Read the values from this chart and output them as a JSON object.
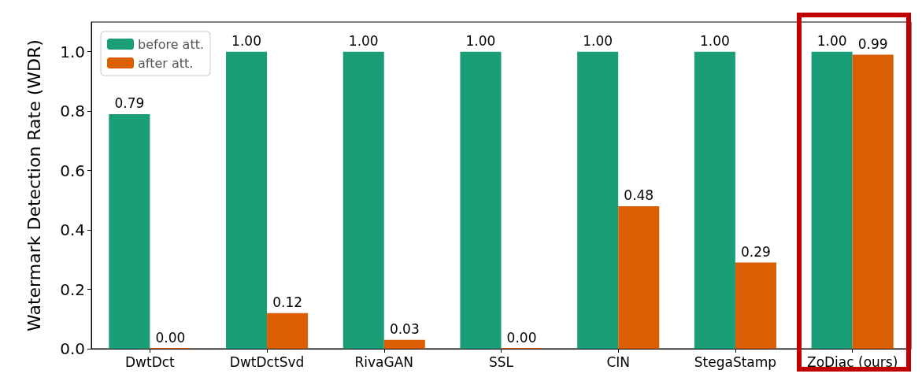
{
  "chart_data": {
    "type": "bar",
    "ylabel": "Watermark Detection Rate (WDR)",
    "categories": [
      "DwtDct",
      "DwtDctSvd",
      "RivaGAN",
      "SSL",
      "CIN",
      "StegaStamp",
      "ZoDiac (ours)"
    ],
    "series": [
      {
        "name": "before att.",
        "color": "#1b9e77",
        "values": [
          0.79,
          1.0,
          1.0,
          1.0,
          1.0,
          1.0,
          1.0
        ],
        "value_labels": [
          "0.79",
          "1.00",
          "1.00",
          "1.00",
          "1.00",
          "1.00",
          "1.00"
        ]
      },
      {
        "name": "after att.",
        "color": "#d95f02",
        "values": [
          0.0,
          0.12,
          0.03,
          0.0,
          0.48,
          0.29,
          0.99
        ],
        "value_labels": [
          "0.00",
          "0.12",
          "0.03",
          "0.00",
          "0.48",
          "0.29",
          "0.99"
        ]
      }
    ],
    "ylim": [
      0,
      1.1
    ],
    "yticks": [
      {
        "value": 0,
        "label": "0.0"
      },
      {
        "value": 0.2,
        "label": "0.2"
      },
      {
        "value": 0.4,
        "label": "0.4"
      },
      {
        "value": 0.6,
        "label": "0.6"
      },
      {
        "value": 0.8,
        "label": "0.8"
      },
      {
        "value": 1.0,
        "label": "1.0"
      }
    ],
    "grid": false,
    "legend": "top left"
  }
}
